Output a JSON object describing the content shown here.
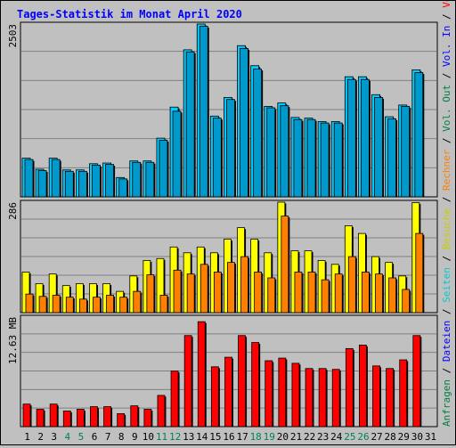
{
  "title": "Tages-Statistik im Monat April 2020",
  "colors": {
    "background": "#c0c0c0",
    "grid": "#808080",
    "title": "#0000ff",
    "anfragen": "#00ccff",
    "dateien": "#0099cc",
    "seiten": "#00ffff",
    "besuche": "#ffff00",
    "rechner": "#ff8000",
    "volumen": "#ff0000",
    "weekend_label": "#00805c",
    "weekday_label": "#000000"
  },
  "right_legend": {
    "top": [
      {
        "text": "Anfragen",
        "color": "#008040"
      },
      {
        "text": " / ",
        "color": "#000000"
      },
      {
        "text": "Dateien",
        "color": "#0000ff"
      },
      {
        "text": " / ",
        "color": "#000000"
      },
      {
        "text": "Seiten",
        "color": "#00cccc"
      },
      {
        "text": " / ",
        "color": "#000000"
      },
      {
        "text": "Besuche",
        "color": "#cccc00"
      },
      {
        "text": " / ",
        "color": "#000000"
      },
      {
        "text": "Rechner",
        "color": "#ff8000"
      },
      {
        "text": " / ",
        "color": "#000000"
      },
      {
        "text": "Vol. Out",
        "color": "#008040"
      },
      {
        "text": " / ",
        "color": "#000000"
      },
      {
        "text": "Vol. In",
        "color": "#0000ff"
      },
      {
        "text": " / ",
        "color": "#000000"
      },
      {
        "text": "Volumen",
        "color": "#ff0000"
      }
    ]
  },
  "chart_data": [
    {
      "type": "bar",
      "panel": "requests",
      "ymax_label": "2503",
      "ylim": [
        0,
        2503
      ],
      "categories": [
        "1",
        "2",
        "3",
        "4",
        "5",
        "6",
        "7",
        "8",
        "9",
        "10",
        "11",
        "12",
        "13",
        "14",
        "15",
        "16",
        "17",
        "18",
        "19",
        "20",
        "21",
        "22",
        "23",
        "24",
        "25",
        "26",
        "27",
        "28",
        "29",
        "30",
        "31"
      ],
      "weekend": [
        4,
        5,
        11,
        12,
        18,
        19,
        25,
        26
      ],
      "series": [
        {
          "name": "Anfragen",
          "values": [
            560,
            400,
            560,
            390,
            390,
            480,
            490,
            280,
            520,
            520,
            850,
            1300,
            2130,
            2503,
            1170,
            1440,
            2190,
            1900,
            1310,
            1360,
            1150,
            1140,
            1090,
            1090,
            1740,
            1740,
            1480,
            1160,
            1330,
            1840,
            0
          ]
        },
        {
          "name": "Dateien",
          "values": [
            540,
            380,
            540,
            370,
            370,
            460,
            470,
            260,
            500,
            500,
            820,
            1240,
            2100,
            2470,
            1140,
            1410,
            2150,
            1850,
            1290,
            1320,
            1120,
            1120,
            1070,
            1070,
            1700,
            1700,
            1440,
            1130,
            1310,
            1800,
            0
          ]
        }
      ]
    },
    {
      "type": "bar",
      "panel": "visits",
      "ymax_label": "286",
      "ylim": [
        0,
        286
      ],
      "categories": [
        "1",
        "2",
        "3",
        "4",
        "5",
        "6",
        "7",
        "8",
        "9",
        "10",
        "11",
        "12",
        "13",
        "14",
        "15",
        "16",
        "17",
        "18",
        "19",
        "20",
        "21",
        "22",
        "23",
        "24",
        "25",
        "26",
        "27",
        "28",
        "29",
        "30",
        "31"
      ],
      "series": [
        {
          "name": "Besuche",
          "values": [
            105,
            75,
            100,
            70,
            75,
            75,
            75,
            55,
            95,
            135,
            140,
            170,
            155,
            170,
            155,
            190,
            220,
            190,
            155,
            286,
            160,
            160,
            135,
            125,
            225,
            205,
            145,
            130,
            95,
            285,
            0
          ]
        },
        {
          "name": "Rechner",
          "values": [
            48,
            42,
            45,
            40,
            35,
            40,
            45,
            40,
            55,
            98,
            45,
            110,
            100,
            125,
            105,
            130,
            145,
            105,
            90,
            250,
            105,
            105,
            85,
            100,
            145,
            105,
            100,
            90,
            60,
            205,
            0
          ]
        }
      ]
    },
    {
      "type": "bar",
      "panel": "volume",
      "ymax_label": "12.63 MB",
      "ylim": [
        0,
        12.63
      ],
      "categories": [
        "1",
        "2",
        "3",
        "4",
        "5",
        "6",
        "7",
        "8",
        "9",
        "10",
        "11",
        "12",
        "13",
        "14",
        "15",
        "16",
        "17",
        "18",
        "19",
        "20",
        "21",
        "22",
        "23",
        "24",
        "25",
        "26",
        "27",
        "28",
        "29",
        "30",
        "31"
      ],
      "series": [
        {
          "name": "Volumen",
          "values": [
            2.6,
            2.0,
            2.6,
            1.8,
            2.0,
            2.3,
            2.3,
            1.5,
            2.4,
            2.0,
            3.6,
            6.4,
            10.5,
            12.1,
            6.9,
            8.0,
            10.5,
            9.7,
            7.6,
            7.9,
            7.3,
            6.7,
            6.7,
            6.6,
            9.0,
            9.4,
            7.0,
            6.7,
            7.7,
            10.5,
            0
          ]
        }
      ]
    }
  ]
}
